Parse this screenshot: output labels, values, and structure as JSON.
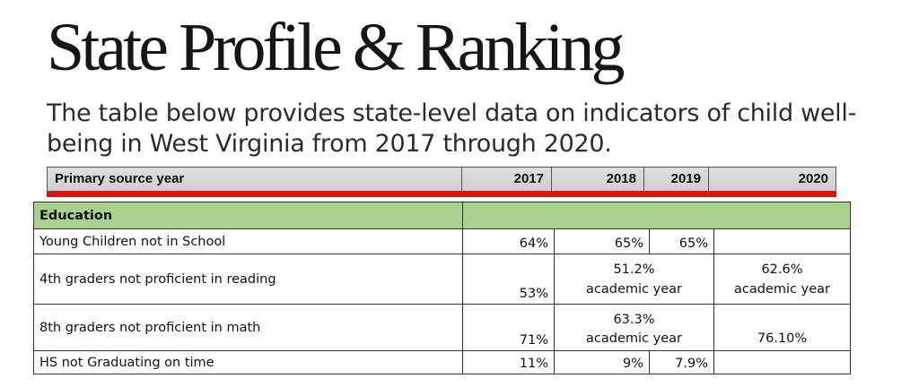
{
  "title": "State Profile & Ranking",
  "subtitle": "The table below provides state-level data on indicators of child well-being in West Virginia from 2017 through 2020.",
  "header": {
    "label": "Primary source year",
    "years": [
      "2017",
      "2018",
      "2019",
      "2020"
    ]
  },
  "section": "Education",
  "rows": [
    {
      "label": "Young Children not in School",
      "y2017": "64%",
      "y2018": "65%",
      "y2019": "65%",
      "y2020": ""
    },
    {
      "label": "4th graders not proficient in reading",
      "y2017": "53%",
      "y2018_19": "51.2%\nacademic year",
      "y2020": "62.6%\nacademic year"
    },
    {
      "label": "8th graders not proficient in math",
      "y2017": "71%",
      "y2018_19": "63.3%\nacademic year",
      "y2020": "76.10%"
    },
    {
      "label": "HS not Graduating on time",
      "y2017": "11%",
      "y2018": "9%",
      "y2019": "7.9%",
      "y2020": ""
    }
  ]
}
